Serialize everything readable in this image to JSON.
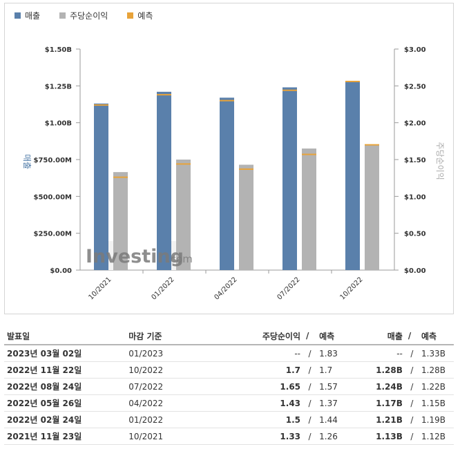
{
  "legend": {
    "revenue": "매출",
    "eps": "주당순이익",
    "forecast": "예측"
  },
  "colors": {
    "revenue": "#5a80ab",
    "eps": "#b3b3b3",
    "forecast": "#e8a33a"
  },
  "chart_data": {
    "type": "bar",
    "categories": [
      "10/2021",
      "01/2022",
      "04/2022",
      "07/2022",
      "10/2022"
    ],
    "left_axis": {
      "label": "매출",
      "ticks": [
        "$0.00",
        "$250.00M",
        "$500.00M",
        "$750.00M",
        "$1.00B",
        "$1.25B",
        "$1.50B"
      ],
      "min": 0,
      "max": 1.5
    },
    "right_axis": {
      "label": "주당순이익",
      "ticks": [
        "$0.00",
        "$0.50",
        "$1.00",
        "$1.50",
        "$2.00",
        "$2.50",
        "$3.00"
      ],
      "min": 0,
      "max": 3.0
    },
    "series": [
      {
        "name": "매출",
        "axis": "left",
        "values": [
          1.13,
          1.21,
          1.17,
          1.24,
          1.28
        ],
        "forecast": [
          1.12,
          1.19,
          1.15,
          1.22,
          1.28
        ]
      },
      {
        "name": "주당순이익",
        "axis": "right",
        "values": [
          1.33,
          1.5,
          1.43,
          1.65,
          1.7
        ],
        "forecast": [
          1.26,
          1.44,
          1.37,
          1.57,
          1.7
        ]
      }
    ],
    "watermark": "Investing.com"
  },
  "table": {
    "headers": {
      "date": "발표일",
      "period": "마감 기준",
      "eps": "주당순이익",
      "sep": "/",
      "eps_forecast": "예측",
      "revenue": "매출",
      "revenue_forecast": "예측"
    },
    "rows": [
      {
        "date": "2023년 03월 02일",
        "period": "01/2023",
        "eps": "--",
        "eps_forecast": "1.83",
        "revenue": "--",
        "revenue_forecast": "1.33B",
        "eps_color": "none",
        "rev_color": "none"
      },
      {
        "date": "2022년 11월 22일",
        "period": "10/2022",
        "eps": "1.7",
        "eps_forecast": "1.7",
        "revenue": "1.28B",
        "revenue_forecast": "1.28B",
        "eps_color": "black",
        "rev_color": "black"
      },
      {
        "date": "2022년 08월 24일",
        "period": "07/2022",
        "eps": "1.65",
        "eps_forecast": "1.57",
        "revenue": "1.24B",
        "revenue_forecast": "1.22B",
        "eps_color": "red",
        "rev_color": "red"
      },
      {
        "date": "2022년 05월 26일",
        "period": "04/2022",
        "eps": "1.43",
        "eps_forecast": "1.37",
        "revenue": "1.17B",
        "revenue_forecast": "1.15B",
        "eps_color": "red",
        "rev_color": "red"
      },
      {
        "date": "2022년 02월 24일",
        "period": "01/2022",
        "eps": "1.5",
        "eps_forecast": "1.44",
        "revenue": "1.21B",
        "revenue_forecast": "1.19B",
        "eps_color": "red",
        "rev_color": "red"
      },
      {
        "date": "2021년 11월 23일",
        "period": "10/2021",
        "eps": "1.33",
        "eps_forecast": "1.26",
        "revenue": "1.13B",
        "revenue_forecast": "1.12B",
        "eps_color": "red",
        "rev_color": "red"
      }
    ]
  }
}
